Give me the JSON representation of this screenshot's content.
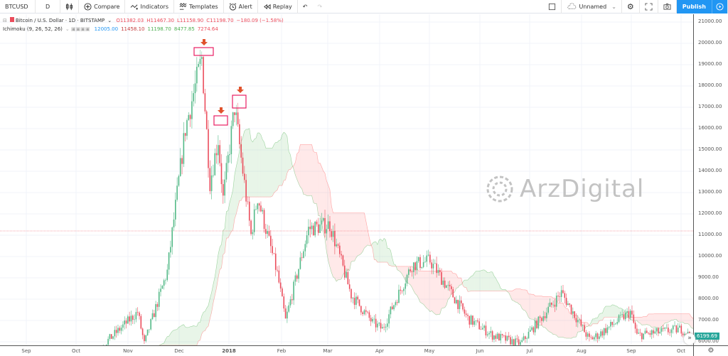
{
  "toolbar": {
    "symbol": "BTCUSD",
    "interval": "D",
    "compare": "Compare",
    "indicators": "Indicators",
    "templates": "Templates",
    "alert": "Alert",
    "replay": "Replay",
    "layout_name": "Unnamed",
    "publish": "Publish"
  },
  "legend": {
    "title": "Bitcoin / U.S. Dollar · 1D · BITSTAMP",
    "open": "O11382.03",
    "high": "H11467.30",
    "low": "L11158.90",
    "close": "C11198.70",
    "change": "−180.09 (−1.58%)",
    "indicator": "Ichimoku (9, 26, 52, 26)",
    "ind_values": [
      "12005.00",
      "11458.10",
      "11198.70",
      "8477.85",
      "7274.64"
    ]
  },
  "price_axis": [
    "21000.00",
    "20000.00",
    "19000.00",
    "18000.00",
    "17000.00",
    "16000.00",
    "15000.00",
    "14000.00",
    "13000.00",
    "12000.00",
    "11000.00",
    "10000.00",
    "9000.00",
    "8000.00",
    "7000.00",
    "6000.00"
  ],
  "last_price": "6199.69",
  "time_axis": [
    "Sep",
    "Oct",
    "Nov",
    "Dec",
    "2018",
    "Feb",
    "Mar",
    "Apr",
    "May",
    "Jun",
    "Jul",
    "Aug",
    "Sep",
    "Oct"
  ],
  "watermark": "ArzDigital",
  "colors": {
    "up": "#53b987",
    "down": "#eb4d5c",
    "accent": "#2196f3",
    "cloud_up": "#4caf50",
    "cloud_down": "#ff5252",
    "highlight": "#e91e63",
    "arrow": "#e0522c"
  },
  "price_keypoints": [
    [
      0,
      2700
    ],
    [
      14,
      4200
    ],
    [
      31,
      4900
    ],
    [
      45,
      3300
    ],
    [
      61,
      4400
    ],
    [
      80,
      6000
    ],
    [
      99,
      7400
    ],
    [
      103,
      5900
    ],
    [
      117,
      9300
    ],
    [
      128,
      16000
    ],
    [
      138,
      19300
    ],
    [
      143,
      13500
    ],
    [
      148,
      15500
    ],
    [
      151,
      12700
    ],
    [
      158,
      17000
    ],
    [
      168,
      11000
    ],
    [
      172,
      12800
    ],
    [
      184,
      9200
    ],
    [
      189,
      7000
    ],
    [
      203,
      11300
    ],
    [
      216,
      11500
    ],
    [
      229,
      8200
    ],
    [
      242,
      6900
    ],
    [
      248,
      6600
    ],
    [
      266,
      9600
    ],
    [
      277,
      9800
    ],
    [
      300,
      7100
    ],
    [
      315,
      6300
    ],
    [
      332,
      5900
    ],
    [
      357,
      8300
    ],
    [
      374,
      6100
    ],
    [
      379,
      6300
    ],
    [
      399,
      7400
    ],
    [
      403,
      6300
    ],
    [
      430,
      6600
    ],
    [
      436,
      6200
    ]
  ]
}
